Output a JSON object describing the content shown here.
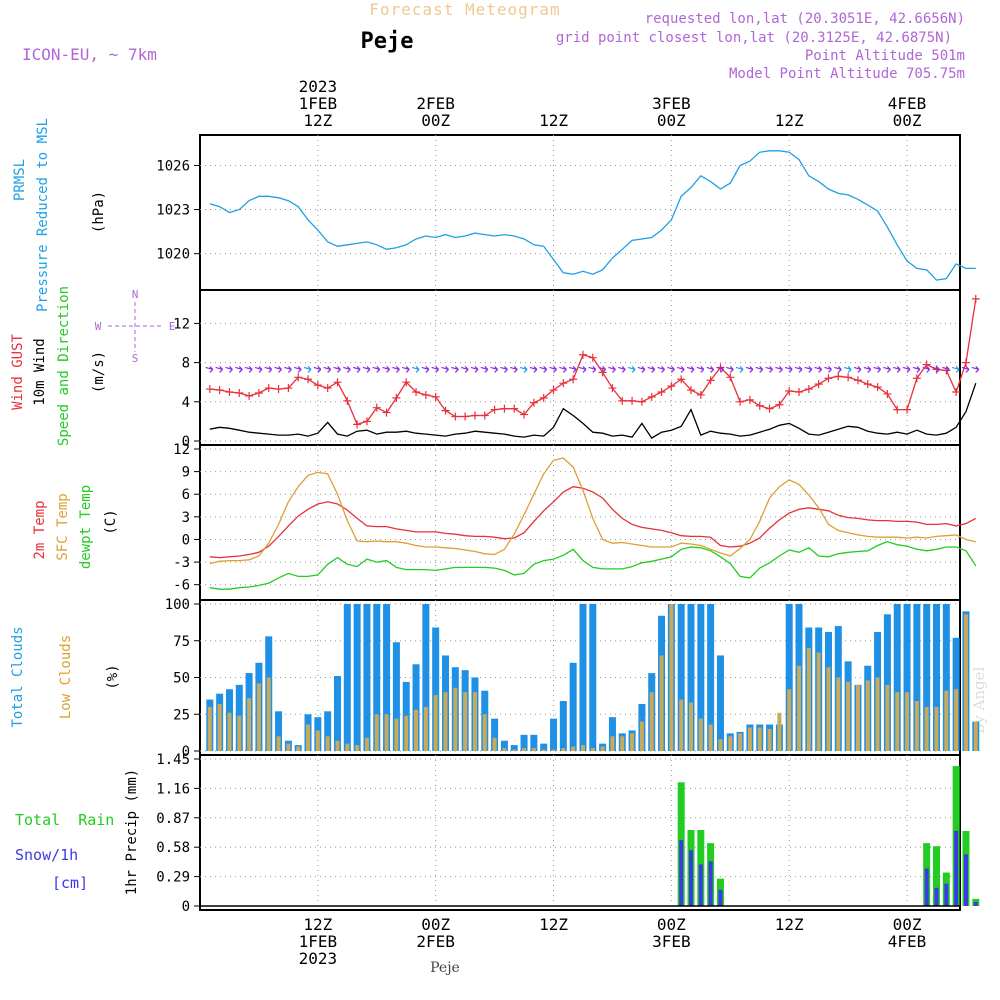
{
  "header": {
    "title": "Forecast Meteogram",
    "location": "Peje",
    "model": "ICON-EU, ~ 7km",
    "requested": "requested lon,lat (20.3051E, 42.6656N)",
    "grid_point": "grid point closest lon,lat (20.3125E, 42.6875N)",
    "point_altitude": "Point Altitude 501m",
    "model_altitude": "Model Point Altitude 705.75m",
    "footer_location": "Peje",
    "watermark": "by Angel"
  },
  "colors": {
    "pressure": "#1ea0e6",
    "gust": "#e8303a",
    "wind": "#000000",
    "wind_dir": "#8a2be2",
    "temp2m": "#e8303a",
    "sfc": "#dca032",
    "dew": "#22cc22",
    "total_cloud": "#1e90e6",
    "low_cloud": "#c8aa5a",
    "rain": "#22cc22",
    "snow": "#3a3ae6",
    "model_label": "#b066d6"
  },
  "chart_data": [
    {
      "type": "line",
      "name": "pressure",
      "ylabel_lines": [
        "PRMSL",
        "Pressure Reduced to MSL"
      ],
      "unit": "(hPa)",
      "ylim": [
        1017.8,
        1027.8
      ],
      "yticks": [
        "1020",
        "1023",
        "1026"
      ],
      "x_hours_start": 1,
      "x_hours_step": 1,
      "series": [
        {
          "values": [
            1023.4,
            1023.2,
            1022.8,
            1023.0,
            1023.6,
            1023.9,
            1023.9,
            1023.8,
            1023.6,
            1023.2,
            1022.3,
            1021.6,
            1020.8,
            1020.5,
            1020.6,
            1020.7,
            1020.8,
            1020.6,
            1020.3,
            1020.4,
            1020.6,
            1021.0,
            1021.2,
            1021.1,
            1021.3,
            1021.1,
            1021.2,
            1021.4,
            1021.3,
            1021.2,
            1021.3,
            1021.2,
            1021.0,
            1020.6,
            1020.5,
            1019.6,
            1018.7,
            1018.6,
            1018.8,
            1018.6,
            1018.9,
            1019.7,
            1020.3,
            1020.9,
            1021.0,
            1021.1,
            1021.6,
            1022.3,
            1023.9,
            1024.5,
            1025.3,
            1024.9,
            1024.4,
            1024.8,
            1026.0,
            1026.3,
            1026.9,
            1027.0,
            1027.0,
            1026.9,
            1026.4,
            1025.3,
            1024.9,
            1024.4,
            1024.1,
            1024.0,
            1023.7,
            1023.3,
            1022.9,
            1021.8,
            1020.6,
            1019.5,
            1019.0,
            1018.9,
            1018.2,
            1018.3,
            1019.3,
            1019.0,
            1019.0
          ]
        }
      ]
    },
    {
      "type": "line",
      "name": "wind",
      "ylabel_lines": [
        "Wind GUST",
        "10m Wind",
        "Speed and Direction"
      ],
      "unit": "(m/s)",
      "ylim": [
        0,
        15
      ],
      "yticks": [
        "0",
        "4",
        "8",
        "12"
      ],
      "compass": {
        "n": "N",
        "e": "E",
        "s": "S",
        "w": "W"
      },
      "direction_level": 7.4,
      "series": [
        {
          "name": "Wind GUST",
          "values": [
            5.3,
            5.2,
            5.0,
            4.9,
            4.6,
            4.9,
            5.4,
            5.3,
            5.4,
            6.5,
            6.3,
            5.7,
            5.4,
            6.0,
            4.1,
            1.7,
            2.0,
            3.4,
            2.9,
            4.4,
            6.0,
            5.0,
            4.7,
            4.5,
            3.1,
            2.5,
            2.5,
            2.6,
            2.6,
            3.2,
            3.3,
            3.3,
            2.7,
            3.9,
            4.4,
            5.2,
            5.9,
            6.3,
            8.8,
            8.5,
            7.0,
            5.4,
            4.1,
            4.1,
            4.0,
            4.5,
            5.0,
            5.6,
            6.3,
            5.2,
            4.7,
            6.2,
            7.5,
            6.5,
            4.0,
            4.2,
            3.6,
            3.3,
            3.7,
            5.1,
            5.0,
            5.3,
            5.8,
            6.4,
            6.6,
            6.5,
            6.2,
            5.8,
            5.5,
            4.8,
            3.2,
            3.2,
            6.4,
            7.8,
            7.3,
            7.2,
            5.0,
            8.0,
            14.5
          ]
        },
        {
          "name": "10m Wind",
          "values": [
            1.2,
            1.4,
            1.3,
            1.1,
            0.9,
            0.8,
            0.7,
            0.6,
            0.6,
            0.7,
            0.5,
            0.8,
            1.9,
            0.7,
            0.5,
            1.0,
            1.1,
            0.7,
            0.9,
            0.9,
            1.0,
            0.8,
            0.7,
            0.6,
            0.5,
            0.7,
            0.8,
            1.0,
            0.9,
            0.8,
            0.7,
            0.5,
            0.4,
            0.6,
            0.5,
            1.4,
            3.3,
            2.6,
            1.8,
            0.9,
            0.8,
            0.5,
            0.6,
            0.4,
            1.8,
            0.3,
            0.9,
            1.1,
            1.5,
            3.2,
            0.6,
            1.0,
            0.8,
            0.7,
            0.5,
            0.6,
            0.9,
            1.2,
            1.6,
            1.8,
            1.3,
            0.7,
            0.6,
            0.9,
            1.2,
            1.5,
            1.4,
            1.0,
            0.8,
            0.7,
            0.9,
            0.7,
            1.1,
            0.7,
            0.6,
            0.8,
            1.4,
            3.0,
            5.9
          ]
        }
      ]
    },
    {
      "type": "line",
      "name": "temperature",
      "ylabel_lines": [
        "2m Temp",
        "SFC Temp",
        "dewpt Temp"
      ],
      "unit": "(C)",
      "ylim": [
        -7.5,
        12
      ],
      "yticks": [
        "-6",
        "-3",
        "0",
        "3",
        "6",
        "9",
        "12"
      ],
      "series": [
        {
          "name": "2m Temp",
          "values": [
            -2.3,
            -2.4,
            -2.3,
            -2.2,
            -2.0,
            -1.7,
            -0.9,
            0.4,
            1.8,
            3.1,
            4.0,
            4.7,
            5.0,
            4.7,
            3.9,
            2.8,
            1.8,
            1.7,
            1.7,
            1.4,
            1.2,
            1.0,
            1.0,
            1.0,
            0.8,
            0.7,
            0.5,
            0.4,
            0.4,
            0.3,
            0.1,
            0.2,
            0.9,
            2.4,
            3.8,
            5.0,
            6.3,
            7.0,
            6.8,
            6.3,
            5.5,
            4.0,
            2.8,
            2.0,
            1.6,
            1.4,
            1.2,
            0.9,
            0.5,
            0.4,
            0.4,
            0.3,
            -0.8,
            -1.0,
            -0.9,
            -0.5,
            0.2,
            1.5,
            2.6,
            3.5,
            4.0,
            4.2,
            4.0,
            3.8,
            3.2,
            2.9,
            2.8,
            2.6,
            2.5,
            2.5,
            2.4,
            2.4,
            2.3,
            2.0,
            2.0,
            2.1,
            1.8,
            2.1,
            2.8
          ]
        },
        {
          "name": "SFC Temp",
          "values": [
            -3.2,
            -2.9,
            -2.8,
            -2.8,
            -2.7,
            -2.2,
            -0.5,
            2.0,
            5.0,
            7.0,
            8.5,
            8.9,
            8.7,
            6.0,
            2.5,
            -0.2,
            -0.3,
            -0.2,
            -0.3,
            -0.3,
            -0.5,
            -0.8,
            -1.0,
            -1.0,
            -1.1,
            -1.2,
            -1.4,
            -1.6,
            -1.9,
            -2.0,
            -1.3,
            0.7,
            3.3,
            6.0,
            8.7,
            10.5,
            10.8,
            9.6,
            6.5,
            2.8,
            0.0,
            -0.5,
            -0.4,
            -0.6,
            -0.8,
            -1.0,
            -1.0,
            -1.0,
            -0.5,
            -0.6,
            -0.8,
            -1.3,
            -1.8,
            -2.2,
            -1.2,
            0.0,
            2.4,
            5.5,
            7.0,
            7.9,
            7.3,
            5.9,
            4.2,
            2.0,
            1.2,
            0.9,
            0.6,
            0.4,
            0.3,
            0.3,
            0.3,
            0.2,
            0.3,
            0.2,
            0.4,
            0.5,
            0.6,
            0.0,
            -0.3
          ]
        },
        {
          "name": "dewpt Temp",
          "values": [
            -6.4,
            -6.6,
            -6.6,
            -6.4,
            -6.3,
            -6.1,
            -5.8,
            -5.1,
            -4.5,
            -4.9,
            -4.9,
            -4.7,
            -3.3,
            -2.4,
            -3.3,
            -3.6,
            -2.6,
            -3.0,
            -2.8,
            -3.7,
            -4.0,
            -4.0,
            -4.0,
            -4.1,
            -3.9,
            -3.7,
            -3.7,
            -3.7,
            -3.7,
            -3.8,
            -4.1,
            -4.7,
            -4.5,
            -3.3,
            -2.8,
            -2.6,
            -2.1,
            -1.3,
            -2.8,
            -3.7,
            -3.9,
            -3.9,
            -3.9,
            -3.6,
            -3.1,
            -2.9,
            -2.6,
            -2.3,
            -1.3,
            -1.0,
            -1.1,
            -1.5,
            -2.3,
            -3.2,
            -4.9,
            -5.1,
            -3.8,
            -3.1,
            -2.2,
            -1.4,
            -1.7,
            -1.1,
            -2.2,
            -2.3,
            -1.9,
            -1.7,
            -1.6,
            -1.5,
            -0.8,
            -0.3,
            -0.7,
            -0.9,
            -1.3,
            -1.5,
            -1.3,
            -1.0,
            -1.0,
            -1.5,
            -3.5
          ]
        }
      ]
    },
    {
      "type": "bar",
      "name": "clouds",
      "ylabel_lines": [
        "Total Clouds",
        "Low Clouds"
      ],
      "unit": "(%)",
      "ylim": [
        0,
        100
      ],
      "yticks": [
        "0",
        "25",
        "50",
        "75",
        "100"
      ],
      "series": [
        {
          "name": "Total Clouds",
          "values": [
            35,
            39,
            42,
            45,
            53,
            60,
            78,
            27,
            7,
            4,
            25,
            23,
            27,
            51,
            100,
            100,
            100,
            100,
            100,
            74,
            47,
            59,
            100,
            84,
            65,
            57,
            55,
            50,
            41,
            22,
            7,
            4,
            11,
            11,
            5,
            22,
            34,
            60,
            100,
            100,
            5,
            23,
            12,
            14,
            32,
            53,
            92,
            100,
            100,
            100,
            100,
            100,
            65,
            12,
            13,
            18,
            18,
            18,
            18,
            100,
            100,
            84,
            84,
            81,
            85,
            61,
            45,
            58,
            81,
            93,
            100,
            100,
            100,
            100,
            100,
            100,
            77,
            95,
            20
          ]
        },
        {
          "name": "Low Clouds",
          "values": [
            30,
            32,
            26,
            24,
            36,
            46,
            50,
            10,
            5,
            3,
            18,
            14,
            10,
            7,
            5,
            4,
            9,
            25,
            25,
            22,
            24,
            28,
            30,
            38,
            40,
            43,
            40,
            40,
            25,
            9,
            2,
            1,
            2,
            2,
            1,
            1,
            2,
            3,
            4,
            2,
            3,
            10,
            10,
            12,
            20,
            40,
            65,
            100,
            35,
            33,
            22,
            18,
            8,
            10,
            12,
            16,
            16,
            15,
            26,
            42,
            58,
            70,
            67,
            57,
            50,
            47,
            45,
            48,
            50,
            45,
            40,
            40,
            34,
            30,
            30,
            41,
            42,
            93,
            20
          ]
        }
      ]
    },
    {
      "type": "bar",
      "name": "precipitation",
      "ylabel_lines": [
        "Total  Rain",
        "Snow/1h",
        "[cm]"
      ],
      "unit": "1hr Precip (mm)",
      "ylim": [
        0,
        1.45
      ],
      "yticks": [
        "0",
        "0.29",
        "0.58",
        "0.87",
        "1.16",
        "1.45"
      ],
      "series": [
        {
          "name": "Total Rain",
          "values": [
            0,
            0,
            0,
            0,
            0,
            0,
            0,
            0,
            0,
            0,
            0,
            0,
            0,
            0,
            0,
            0,
            0,
            0,
            0,
            0,
            0,
            0,
            0,
            0,
            0,
            0,
            0,
            0,
            0,
            0,
            0,
            0,
            0,
            0,
            0,
            0,
            0,
            0,
            0,
            0,
            0,
            0,
            0,
            0,
            0,
            0,
            0,
            0,
            1.22,
            0.75,
            0.75,
            0.62,
            0.27,
            0,
            0,
            0,
            0,
            0,
            0,
            0,
            0,
            0,
            0,
            0,
            0,
            0,
            0,
            0,
            0,
            0,
            0,
            0,
            0,
            0.62,
            0.59,
            0.33,
            1.38,
            0.74,
            0.07
          ]
        },
        {
          "name": "Snow/1h",
          "values": [
            0,
            0,
            0,
            0,
            0,
            0,
            0,
            0,
            0,
            0,
            0,
            0,
            0,
            0,
            0,
            0,
            0,
            0,
            0,
            0,
            0,
            0,
            0,
            0,
            0,
            0,
            0,
            0,
            0,
            0,
            0,
            0,
            0,
            0,
            0,
            0,
            0,
            0,
            0,
            0,
            0,
            0,
            0,
            0,
            0,
            0,
            0,
            0,
            0.65,
            0.55,
            0.41,
            0.44,
            0.16,
            0,
            0,
            0,
            0,
            0,
            0,
            0,
            0,
            0,
            0,
            0,
            0,
            0,
            0,
            0,
            0,
            0,
            0,
            0,
            0,
            0.37,
            0.18,
            0.22,
            0.74,
            0.51,
            0.04
          ]
        }
      ]
    }
  ],
  "time_axis": {
    "top": [
      {
        "hour": 12,
        "lines": [
          "2023",
          "1FEB",
          "12Z"
        ]
      },
      {
        "hour": 24,
        "lines": [
          "2FEB",
          "00Z"
        ]
      },
      {
        "hour": 36,
        "lines": [
          "12Z"
        ]
      },
      {
        "hour": 48,
        "lines": [
          "3FEB",
          "00Z"
        ]
      },
      {
        "hour": 60,
        "lines": [
          "12Z"
        ]
      },
      {
        "hour": 72,
        "lines": [
          "4FEB",
          "00Z"
        ]
      }
    ],
    "bottom": [
      {
        "hour": 12,
        "lines": [
          "12Z",
          "1FEB",
          "2023"
        ]
      },
      {
        "hour": 24,
        "lines": [
          "00Z",
          "2FEB"
        ]
      },
      {
        "hour": 36,
        "lines": [
          "12Z"
        ]
      },
      {
        "hour": 48,
        "lines": [
          "00Z",
          "3FEB"
        ]
      },
      {
        "hour": 60,
        "lines": [
          "12Z"
        ]
      },
      {
        "hour": 72,
        "lines": [
          "00Z",
          "4FEB"
        ]
      }
    ]
  }
}
